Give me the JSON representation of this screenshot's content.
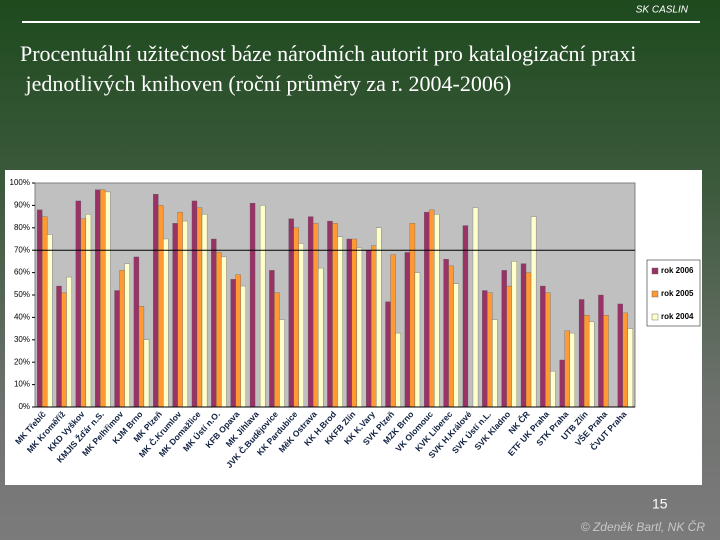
{
  "header": "SK CASLIN",
  "chart_data": {
    "type": "bar",
    "title": "Procentuální užitečnost báze národních autorit pro katalogizační praxi jednotlivých knihoven (roční průměry za r. 2004-2006)",
    "categories": [
      "MK Třebíč",
      "MK Kroměříž",
      "KKD Vyškov",
      "KMJIS Žďár n.S.",
      "MK Pelhřimov",
      "KJM Brno",
      "MK Plzeň",
      "MK Č.Krumlov",
      "MK Domažlice",
      "MK Ústí n.O.",
      "KFB Opava",
      "MK Jihlava",
      "JVK Č.Budějovice",
      "KK Pardubice",
      "MěK Ostrava",
      "KK H.Brod",
      "KKFB Zlín",
      "KK K.Vary",
      "SVK Plzeň",
      "MZK Brno",
      "VK Olomouc",
      "KVK Liberec",
      "SVK H.Králové",
      "SVK Ústí n.L.",
      "SVK Kladno",
      "NK ČR",
      "ETF UK Praha",
      "STK Praha",
      "UTB Zlín",
      "VŠE Praha",
      "ČVUT Praha"
    ],
    "series": [
      {
        "name": "rok 2006",
        "color": "#993366",
        "values": [
          88,
          54,
          92,
          97,
          52,
          67,
          95,
          82,
          92,
          75,
          57,
          91,
          61,
          84,
          85,
          83,
          75,
          70,
          47,
          69,
          87,
          66,
          81,
          52,
          61,
          64,
          54,
          21,
          48,
          50,
          46
        ]
      },
      {
        "name": "rok 2005",
        "color": "#ff9933",
        "values": [
          85,
          51,
          84,
          97,
          61,
          45,
          90,
          87,
          89,
          69,
          59,
          null,
          51,
          80,
          82,
          82,
          75,
          72,
          68,
          82,
          88,
          63,
          null,
          51,
          54,
          60,
          51,
          34,
          41,
          41,
          42
        ]
      },
      {
        "name": "rok 2004",
        "color": "#ffffcc",
        "values": [
          77,
          58,
          86,
          96,
          64,
          30,
          75,
          83,
          86,
          67,
          54,
          90,
          39,
          73,
          62,
          76,
          71,
          80,
          33,
          60,
          86,
          55,
          89,
          39,
          65,
          85,
          16,
          33,
          38,
          null,
          35
        ]
      }
    ],
    "ylim": [
      0,
      100
    ],
    "yticks": [
      {
        "value": 0,
        "label": "0%"
      },
      {
        "value": 10,
        "label": "10%"
      },
      {
        "value": 20,
        "label": "20%"
      },
      {
        "value": 30,
        "label": "30%"
      },
      {
        "value": 40,
        "label": "40%"
      },
      {
        "value": 50,
        "label": "50%"
      },
      {
        "value": 60,
        "label": "60%"
      },
      {
        "value": 70,
        "label": "70%"
      },
      {
        "value": 80,
        "label": "80%"
      },
      {
        "value": 90,
        "label": "90%"
      },
      {
        "value": 100,
        "label": "100%"
      }
    ],
    "reference_line": 70,
    "legend": "right"
  },
  "footer": {
    "page": "15",
    "author": "© Zdeněk Bartl, NK ČR"
  }
}
